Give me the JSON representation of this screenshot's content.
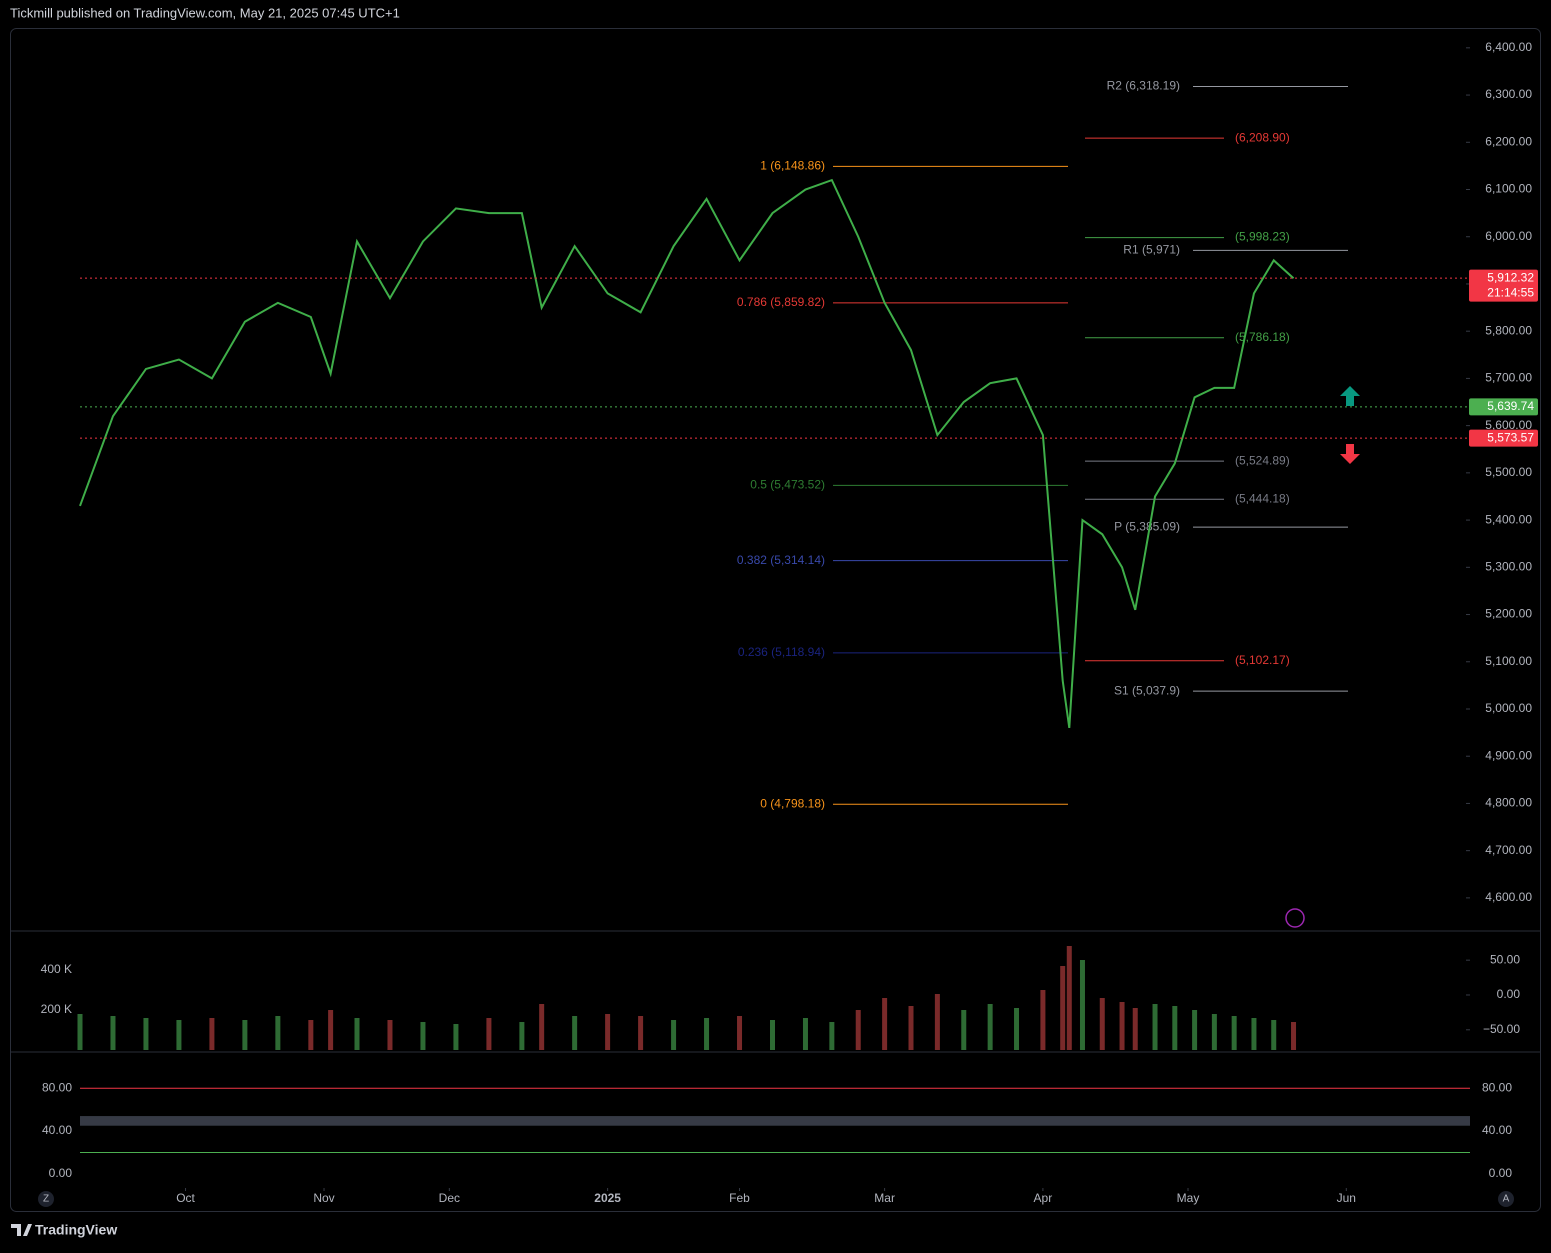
{
  "header": {
    "title": "Tickmill published on TradingView.com, May 21, 2025 07:45 UTC+1"
  },
  "footer": {
    "brand": "TradingView"
  },
  "controls": {
    "left": "Z",
    "right": "A"
  },
  "chart_data": {
    "type": "line",
    "color": "#3fae49",
    "x": [
      0,
      5,
      10,
      15,
      20,
      25,
      30,
      35,
      38,
      42,
      47,
      52,
      57,
      62,
      67,
      70,
      75,
      80,
      85,
      90,
      95,
      100,
      105,
      110,
      114,
      118,
      122,
      126,
      130,
      134,
      138,
      142,
      146,
      149,
      150,
      152,
      155,
      158,
      160,
      163,
      166,
      169,
      172,
      175,
      178,
      181,
      184
    ],
    "values": [
      5430,
      5620,
      5720,
      5740,
      5700,
      5820,
      5860,
      5830,
      5710,
      5990,
      5870,
      5990,
      6060,
      6050,
      6050,
      5850,
      5980,
      5880,
      5840,
      5980,
      6080,
      5950,
      6050,
      6100,
      6120,
      6000,
      5860,
      5760,
      5580,
      5650,
      5690,
      5700,
      5580,
      5060,
      4960,
      5400,
      5370,
      5300,
      5210,
      5450,
      5520,
      5660,
      5680,
      5680,
      5880,
      5950,
      5912
    ],
    "xlim": [
      0,
      210
    ],
    "xticks": [
      {
        "value": 16,
        "label": "Oct"
      },
      {
        "value": 37,
        "label": "Nov"
      },
      {
        "value": 56,
        "label": "Dec"
      },
      {
        "value": 80,
        "label": "2025"
      },
      {
        "value": 100,
        "label": "Feb"
      },
      {
        "value": 122,
        "label": "Mar"
      },
      {
        "value": 146,
        "label": "Apr"
      },
      {
        "value": 168,
        "label": "May"
      },
      {
        "value": 192,
        "label": "Jun"
      }
    ],
    "ylim": [
      4532,
      6442
    ],
    "yticks": [
      {
        "value": 4600,
        "label": "4,600.00"
      },
      {
        "value": 4700,
        "label": "4,700.00"
      },
      {
        "value": 4800,
        "label": "4,800.00"
      },
      {
        "value": 4900,
        "label": "4,900.00"
      },
      {
        "value": 5000,
        "label": "5,000.00"
      },
      {
        "value": 5100,
        "label": "5,100.00"
      },
      {
        "value": 5200,
        "label": "5,200.00"
      },
      {
        "value": 5300,
        "label": "5,300.00"
      },
      {
        "value": 5400,
        "label": "5,400.00"
      },
      {
        "value": 5500,
        "label": "5,500.00"
      },
      {
        "value": 5600,
        "label": "5,600.00"
      },
      {
        "value": 5700,
        "label": "5,700.00"
      },
      {
        "value": 5800,
        "label": "5,800.00"
      },
      {
        "value": 5900,
        "label": "5,900.00"
      },
      {
        "value": 6000,
        "label": "6,000.00"
      },
      {
        "value": 6100,
        "label": "6,100.00"
      },
      {
        "value": 6200,
        "label": "6,200.00"
      },
      {
        "value": 6300,
        "label": "6,300.00"
      },
      {
        "value": 6400,
        "label": "6,400.00"
      }
    ],
    "price_labels": [
      {
        "value": 5912.32,
        "label": "5,912.32",
        "time": "21:14:55",
        "color": "#f23645"
      },
      {
        "value": 5639.74,
        "label": "5,639.74",
        "color": "#4caf50"
      },
      {
        "value": 5573.57,
        "label": "5,573.57",
        "color": "#f23645"
      }
    ],
    "fib_levels": [
      {
        "value": 6148.86,
        "label": "1 (6,148.86)",
        "color": "#f7931a"
      },
      {
        "value": 5859.82,
        "label": "0.786 (5,859.82)",
        "color": "#e53935"
      },
      {
        "value": 5473.52,
        "label": "0.5 (5,473.52)",
        "color": "#2e7d32"
      },
      {
        "value": 5314.14,
        "label": "0.382 (5,314.14)",
        "color": "#3949ab"
      },
      {
        "value": 5118.94,
        "label": "0.236 (5,118.94)",
        "color": "#1a237e"
      },
      {
        "value": 4798.18,
        "label": "0 (4,798.18)",
        "color": "#f7931a"
      }
    ],
    "pivots": [
      {
        "value": 6318.19,
        "label": "R2 (6,318.19)",
        "color": "#9598a1"
      },
      {
        "value": 6208.9,
        "label": "(6,208.90)",
        "color": "#e53935"
      },
      {
        "value": 5998.23,
        "label": "(5,998.23)",
        "color": "#43a047"
      },
      {
        "value": 5971,
        "label": "R1 (5,971)",
        "color": "#9598a1"
      },
      {
        "value": 5786.18,
        "label": "(5,786.18)",
        "color": "#43a047"
      },
      {
        "value": 5524.89,
        "label": "(5,524.89)",
        "color": "#787b86"
      },
      {
        "value": 5444.18,
        "label": "(5,444.18)",
        "color": "#787b86"
      },
      {
        "value": 5385.09,
        "label": "P (5,385.09)",
        "color": "#9598a1"
      },
      {
        "value": 5102.17,
        "label": "(5,102.17)",
        "color": "#e53935"
      },
      {
        "value": 5037.9,
        "label": "S1 (5,037.9)",
        "color": "#9598a1"
      }
    ],
    "volume": {
      "values": [
        180000,
        170000,
        160000,
        150000,
        160000,
        150000,
        170000,
        150000,
        200000,
        160000,
        150000,
        140000,
        130000,
        160000,
        140000,
        230000,
        170000,
        180000,
        170000,
        150000,
        160000,
        170000,
        150000,
        160000,
        140000,
        200000,
        260000,
        220000,
        280000,
        200000,
        230000,
        210000,
        300000,
        420000,
        520000,
        450000,
        260000,
        240000,
        210000,
        230000,
        220000,
        200000,
        180000,
        170000,
        160000,
        150000,
        140000
      ],
      "up_color": "#2e6b34",
      "down_color": "#7a2a2a",
      "ylim": [
        0,
        585000
      ],
      "yticks": [
        {
          "value": 400000,
          "label": "400 K"
        },
        {
          "value": 200000,
          "label": "200 K"
        }
      ]
    },
    "oscillator": {
      "ylim": [
        -79,
        89
      ],
      "yticks": [
        {
          "value": 50,
          "label": "50.00"
        },
        {
          "value": 0,
          "label": "0.00"
        },
        {
          "value": -50,
          "label": "−50.00"
        }
      ]
    },
    "stochastic": {
      "ylim": [
        -15,
        111
      ],
      "band": [
        45,
        54
      ],
      "levels": [
        {
          "value": 80,
          "color": "#f23645"
        },
        {
          "value": 20,
          "color": "#4caf50"
        }
      ],
      "yticks": [
        {
          "value": 80,
          "label": "80.00"
        },
        {
          "value": 40,
          "label": "40.00"
        },
        {
          "value": 0,
          "label": "0.00"
        }
      ]
    }
  }
}
